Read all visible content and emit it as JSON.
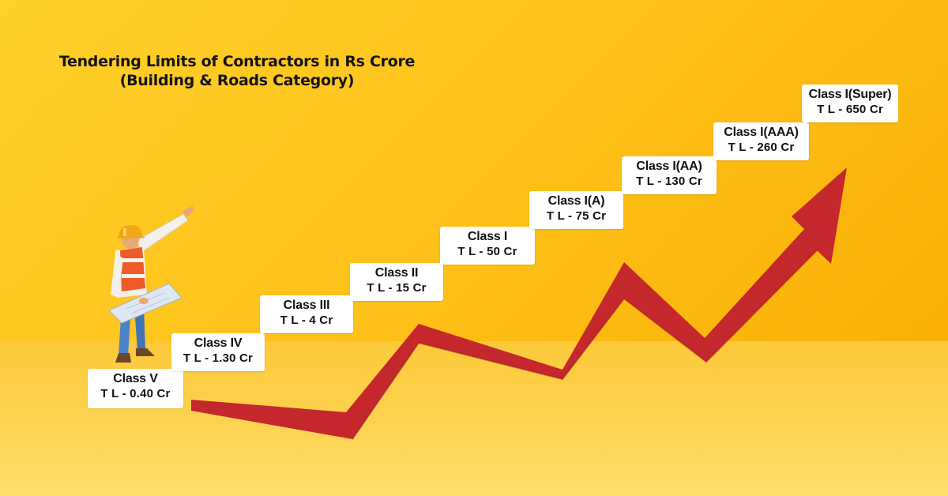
{
  "title": {
    "line1": "Tendering Limits of Contractors in Rs Crore",
    "line2": "(Building & Roads Category)"
  },
  "steps": [
    {
      "class_label": "Class V",
      "limit_label": "T L - 0.40  Cr"
    },
    {
      "class_label": "Class IV",
      "limit_label": "T L - 1.30  Cr"
    },
    {
      "class_label": "Class III",
      "limit_label": "T L - 4  Cr"
    },
    {
      "class_label": "Class II",
      "limit_label": "T L - 15  Cr"
    },
    {
      "class_label": "Class I",
      "limit_label": "T L - 50  Cr"
    },
    {
      "class_label": "Class I(A)",
      "limit_label": "T L - 75  Cr"
    },
    {
      "class_label": "Class I(AA)",
      "limit_label": "T L - 130  Cr"
    },
    {
      "class_label": "Class I(AAA)",
      "limit_label": "T L - 260  Cr"
    },
    {
      "class_label": "Class I(Super)",
      "limit_label": "T L - 650 Cr"
    }
  ],
  "colors": {
    "background": "#ffc21a",
    "floor": "#fdd24f",
    "arrow": "#c4282c",
    "card": "#ffffff"
  },
  "illustration": {
    "figure": "construction-worker-pointing-icon",
    "arrow": "rising-trend-arrow-icon"
  }
}
